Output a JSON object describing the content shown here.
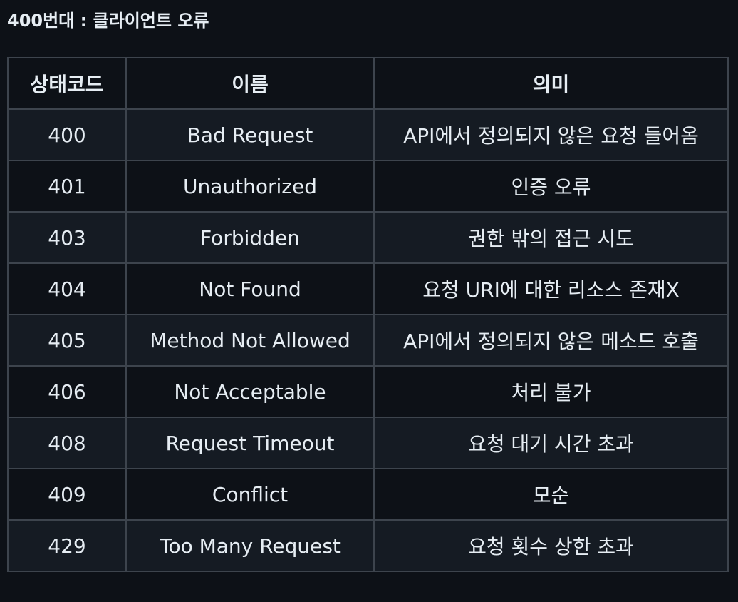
{
  "heading": "400번대 : 클라이언트 오류",
  "table": {
    "headers": [
      "상태코드",
      "이름",
      "의미"
    ],
    "rows": [
      {
        "code": "400",
        "name": "Bad Request",
        "meaning": "API에서 정의되지 않은 요청 들어옴"
      },
      {
        "code": "401",
        "name": "Unauthorized",
        "meaning": "인증 오류"
      },
      {
        "code": "403",
        "name": "Forbidden",
        "meaning": "권한 밖의 접근 시도"
      },
      {
        "code": "404",
        "name": "Not Found",
        "meaning": "요청 URI에 대한 리소스 존재X"
      },
      {
        "code": "405",
        "name": "Method Not Allowed",
        "meaning": "API에서 정의되지 않은 메소드 호출"
      },
      {
        "code": "406",
        "name": "Not Acceptable",
        "meaning": "처리 불가"
      },
      {
        "code": "408",
        "name": "Request Timeout",
        "meaning": "요청 대기 시간 초과"
      },
      {
        "code": "409",
        "name": "Conflict",
        "meaning": "모순"
      },
      {
        "code": "429",
        "name": "Too Many Request",
        "meaning": "요청 횟수 상한 초과"
      }
    ]
  }
}
